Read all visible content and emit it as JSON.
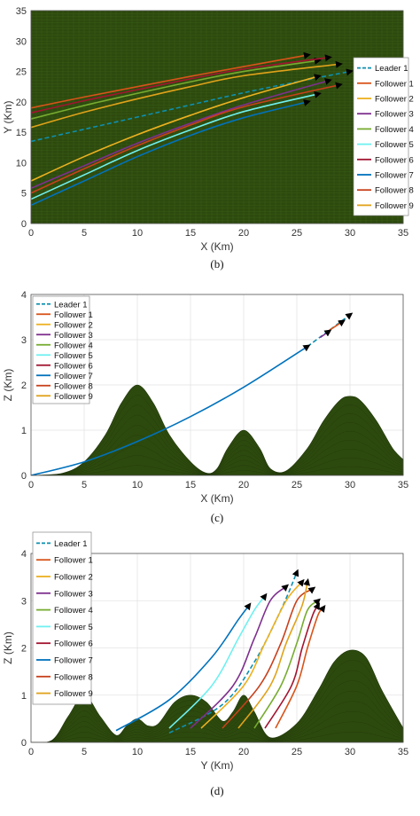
{
  "legend_labels": [
    "Leader 1",
    "Follower 1",
    "Follower 2",
    "Follower 3",
    "Follower 4",
    "Follower 5",
    "Follower 6",
    "Follower 7",
    "Follower 8",
    "Follower 9"
  ],
  "legend_colors": [
    "#0d8fb0",
    "#d95319",
    "#edb120",
    "#7e2f8e",
    "#77ac30",
    "#6ff0f0",
    "#a2142f",
    "#0072bd",
    "#c8401b",
    "#e0a21a"
  ],
  "chart_data": [
    {
      "type": "line",
      "caption": "(b)",
      "xlabel": "X (Km)",
      "ylabel": "Y (Km)",
      "xlim": [
        0,
        35
      ],
      "ylim": [
        0,
        35
      ],
      "xticks": [
        0,
        5,
        10,
        15,
        20,
        25,
        30,
        35
      ],
      "yticks": [
        0,
        5,
        10,
        15,
        20,
        25,
        30,
        35
      ],
      "background": "#2d4a0e",
      "legend_position": "right",
      "series": [
        {
          "name": "Leader 1",
          "style": "dashed",
          "x": [
            0,
            5,
            10,
            15,
            20,
            25,
            30
          ],
          "y": [
            13.5,
            15.5,
            17.5,
            19.5,
            21.5,
            23.3,
            25.0
          ]
        },
        {
          "name": "Follower 1",
          "x": [
            0,
            5,
            10,
            15,
            20,
            26
          ],
          "y": [
            19.0,
            20.8,
            22.5,
            24.2,
            25.8,
            27.7
          ]
        },
        {
          "name": "Follower 2",
          "x": [
            0,
            5,
            10,
            15,
            20,
            27
          ],
          "y": [
            7.0,
            11.0,
            14.6,
            17.8,
            20.7,
            24.2
          ]
        },
        {
          "name": "Follower 3",
          "x": [
            0,
            5,
            10,
            15,
            20,
            28
          ],
          "y": [
            5.8,
            9.5,
            13.2,
            16.5,
            19.5,
            23.5
          ]
        },
        {
          "name": "Follower 4",
          "x": [
            0,
            5,
            10,
            15,
            20,
            27
          ],
          "y": [
            17.2,
            19.4,
            21.4,
            23.3,
            25.0,
            26.8
          ]
        },
        {
          "name": "Follower 5",
          "x": [
            0,
            5,
            10,
            15,
            20,
            27
          ],
          "y": [
            4.0,
            8.0,
            12.0,
            15.4,
            18.4,
            21.3
          ]
        },
        {
          "name": "Follower 6",
          "x": [
            0,
            5,
            10,
            15,
            20,
            28
          ],
          "y": [
            18.2,
            20.2,
            22.0,
            23.8,
            25.4,
            27.3
          ]
        },
        {
          "name": "Follower 7",
          "x": [
            0,
            5,
            10,
            15,
            20,
            26
          ],
          "y": [
            3.0,
            7.0,
            11.0,
            14.5,
            17.4,
            20.0
          ]
        },
        {
          "name": "Follower 8",
          "x": [
            0,
            5,
            10,
            15,
            20,
            29
          ],
          "y": [
            5.0,
            9.0,
            12.8,
            16.2,
            19.2,
            22.8
          ]
        },
        {
          "name": "Follower 9",
          "x": [
            0,
            5,
            10,
            15,
            20,
            29
          ],
          "y": [
            15.8,
            18.3,
            20.5,
            22.5,
            24.3,
            26.2
          ]
        }
      ]
    },
    {
      "type": "line",
      "caption": "(c)",
      "xlabel": "X (Km)",
      "ylabel": "Z (Km)",
      "xlim": [
        0,
        35
      ],
      "ylim": [
        0,
        4
      ],
      "xticks": [
        0,
        5,
        10,
        15,
        20,
        25,
        30,
        35
      ],
      "yticks": [
        0,
        1,
        2,
        3,
        4
      ],
      "terrain_color": "#2d4a0e",
      "legend_position": "top-left",
      "terrain": [
        {
          "x": [
            0,
            3,
            5,
            7,
            8.5,
            10,
            11.5,
            13,
            15,
            16.5,
            17.5,
            18.5,
            20,
            21.5,
            22.5,
            24,
            26,
            27.5,
            29,
            30,
            31,
            32.5,
            34,
            35
          ],
          "z": [
            0,
            0.05,
            0.3,
            0.9,
            1.6,
            2.0,
            1.6,
            0.9,
            0.3,
            0.05,
            0.15,
            0.6,
            1.0,
            0.6,
            0.15,
            0.1,
            0.6,
            1.2,
            1.65,
            1.75,
            1.65,
            1.2,
            0.6,
            0.35
          ]
        }
      ],
      "series": [
        {
          "name": "Leader 1",
          "style": "dashed",
          "x": [
            26,
            28,
            30
          ],
          "y": [
            2.85,
            3.2,
            3.55
          ]
        },
        {
          "name": "Follower 7",
          "x": [
            0,
            5,
            10,
            15,
            20,
            26
          ],
          "y": [
            0,
            0.3,
            0.75,
            1.3,
            1.95,
            2.85
          ]
        },
        {
          "name": "Follower 1",
          "x": [
            28,
            29.3
          ],
          "y": [
            3.2,
            3.4
          ]
        },
        {
          "name": "Follower 3",
          "x": [
            27.2,
            28
          ],
          "y": [
            3.05,
            3.18
          ]
        }
      ]
    },
    {
      "type": "line",
      "caption": "(d)",
      "xlabel": "Y (Km)",
      "ylabel": "Z (Km)",
      "xlim": [
        0,
        35
      ],
      "ylim": [
        0,
        4
      ],
      "xticks": [
        0,
        5,
        10,
        15,
        20,
        25,
        30,
        35
      ],
      "yticks": [
        0,
        1,
        2,
        3,
        4
      ],
      "terrain_color": "#2d4a0e",
      "legend_position": "top-left",
      "terrain": [
        {
          "x": [
            0,
            2,
            3.5,
            5,
            6.5,
            8,
            9,
            10,
            11,
            12,
            13.5,
            15,
            16.5,
            18,
            19,
            20,
            21,
            22.5,
            25,
            27,
            28.5,
            30,
            31.5,
            33,
            35
          ],
          "z": [
            0,
            0.05,
            0.55,
            1.0,
            0.55,
            0.15,
            0.35,
            0.5,
            0.35,
            0.4,
            0.85,
            1.0,
            0.85,
            0.45,
            0.65,
            1.0,
            0.65,
            0.1,
            0.4,
            1.1,
            1.7,
            1.95,
            1.8,
            1.1,
            0.3
          ]
        }
      ],
      "series": [
        {
          "name": "Leader 1",
          "style": "dashed",
          "x": [
            13,
            18,
            21,
            23.5,
            25
          ],
          "y": [
            0.2,
            0.8,
            1.7,
            2.8,
            3.6
          ]
        },
        {
          "name": "Follower 1",
          "x": [
            23,
            25,
            26,
            27,
            27.5
          ],
          "y": [
            0.3,
            1.2,
            2.0,
            2.7,
            2.85
          ]
        },
        {
          "name": "Follower 2",
          "x": [
            16,
            20,
            22,
            24,
            25.5
          ],
          "y": [
            0.3,
            1.2,
            2.1,
            3.0,
            3.4
          ]
        },
        {
          "name": "Follower 3",
          "x": [
            15,
            19,
            21,
            22.5,
            24
          ],
          "y": [
            0.3,
            1.2,
            2.2,
            3.0,
            3.3
          ]
        },
        {
          "name": "Follower 4",
          "x": [
            21,
            23.5,
            25,
            26,
            27
          ],
          "y": [
            0.3,
            1.2,
            2.1,
            2.8,
            3.0
          ]
        },
        {
          "name": "Follower 5",
          "x": [
            13,
            17,
            19.5,
            21,
            22
          ],
          "y": [
            0.3,
            1.2,
            2.2,
            2.8,
            3.1
          ]
        },
        {
          "name": "Follower 6",
          "x": [
            22,
            24.5,
            25.5,
            26.5,
            27
          ],
          "y": [
            0.3,
            1.2,
            2.0,
            2.7,
            2.9
          ]
        },
        {
          "name": "Follower 7",
          "x": [
            8,
            13,
            17,
            19.5,
            20.5
          ],
          "y": [
            0.25,
            0.9,
            1.8,
            2.6,
            2.9
          ]
        },
        {
          "name": "Follower 8",
          "x": [
            18,
            21.5,
            23.5,
            25,
            26.5
          ],
          "y": [
            0.3,
            1.2,
            2.1,
            3.0,
            3.25
          ]
        },
        {
          "name": "Follower 9",
          "x": [
            19.5,
            22.5,
            24,
            25.5,
            26
          ],
          "y": [
            0.3,
            1.2,
            2.1,
            2.9,
            3.4
          ]
        }
      ]
    }
  ]
}
